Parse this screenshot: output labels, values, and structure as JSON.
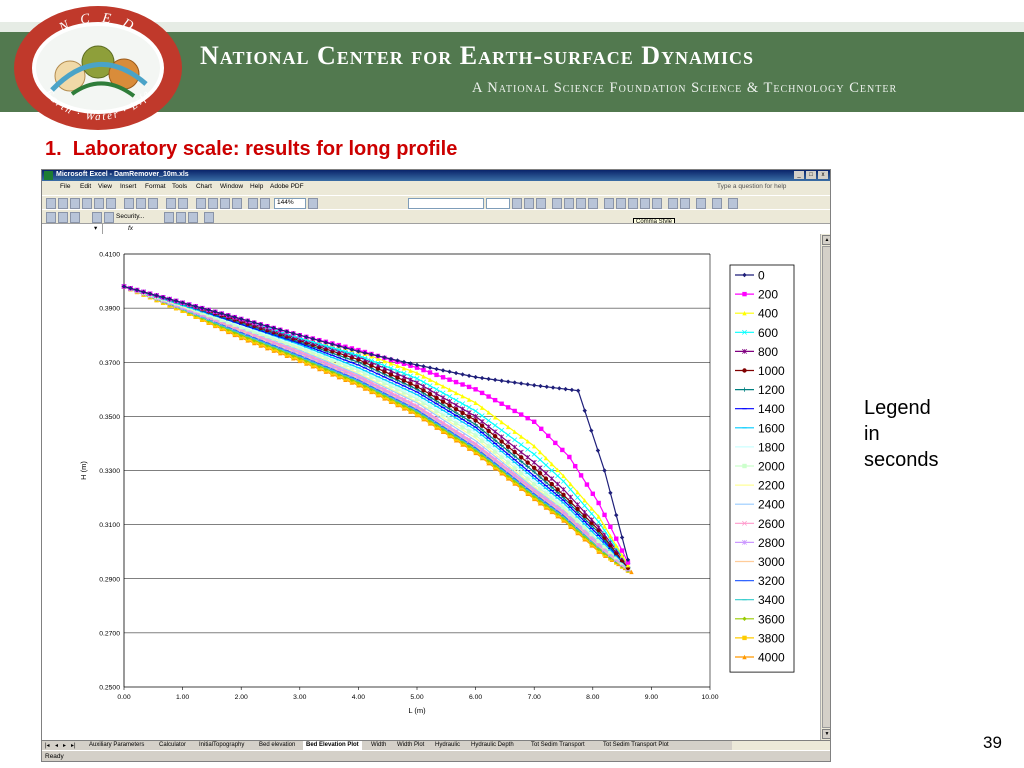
{
  "banner": {
    "title": "National Center for Earth-surface Dynamics",
    "subtitle": "A National Science Foundation Science & Technology Center",
    "logo": {
      "top": "N C E D",
      "bottom": "Earth · Water · Life"
    }
  },
  "slide": {
    "title": "1.  Laboratory scale: results for long profile",
    "legend_note": [
      "Legend",
      "in",
      "seconds"
    ],
    "page_number": "39"
  },
  "excel": {
    "window_title": "Microsoft Excel - DamRemover_10m.xls",
    "window_buttons": [
      "_",
      "□",
      "x"
    ],
    "menu": [
      "File",
      "Edit",
      "View",
      "Insert",
      "Format",
      "Tools",
      "Chart",
      "Window",
      "Help",
      "Adobe PDF"
    ],
    "help_placeholder": "Type a question for help",
    "zoom": "144%",
    "security_label": "Security...",
    "tooltip": "Comma Style",
    "fx_label": "fx",
    "sheet_tabs": [
      "Auxiliary Parameters",
      "Calculator",
      "InitialTopography",
      "Bed elevation",
      "Bed Elevation Plot",
      "Width",
      "Width Plot",
      "Hydraulic",
      "Hydraulic Depth",
      "Tot Sedim Transport",
      "Tot Sedim Transport Plot"
    ],
    "active_tab": "Bed Elevation Plot",
    "status": "Ready"
  },
  "chart_data": {
    "type": "line",
    "xlabel": "L (m)",
    "ylabel": "H (m)",
    "xlim": [
      0,
      10
    ],
    "ylim": [
      0.25,
      0.41
    ],
    "x_ticks": [
      "0.00",
      "1.00",
      "2.00",
      "3.00",
      "4.00",
      "5.00",
      "6.00",
      "7.00",
      "8.00",
      "9.00",
      "10.00"
    ],
    "y_ticks": [
      "0.2500",
      "0.2700",
      "0.2900",
      "0.3100",
      "0.3300",
      "0.3500",
      "0.3700",
      "0.3900",
      "0.4100"
    ],
    "grid": "horizontal",
    "legend_position": "right",
    "series": [
      {
        "name": "0",
        "color": "#1f1f7a",
        "marker": "diamond",
        "points": [
          [
            0,
            0.398
          ],
          [
            1,
            0.392
          ],
          [
            2,
            0.386
          ],
          [
            3,
            0.38
          ],
          [
            4,
            0.374
          ],
          [
            5,
            0.369
          ],
          [
            6,
            0.3645
          ],
          [
            7,
            0.3615
          ],
          [
            7.75,
            0.3595
          ],
          [
            8.2,
            0.33
          ],
          [
            8.6,
            0.297
          ]
        ]
      },
      {
        "name": "200",
        "color": "#ff00ff",
        "marker": "square",
        "points": [
          [
            0,
            0.398
          ],
          [
            1,
            0.392
          ],
          [
            2,
            0.386
          ],
          [
            3,
            0.38
          ],
          [
            4,
            0.3745
          ],
          [
            5,
            0.368
          ],
          [
            6,
            0.36
          ],
          [
            7,
            0.348
          ],
          [
            7.6,
            0.335
          ],
          [
            8.1,
            0.318
          ],
          [
            8.6,
            0.296
          ]
        ]
      },
      {
        "name": "400",
        "color": "#ffff00",
        "marker": "triangle",
        "points": [
          [
            0,
            0.398
          ],
          [
            1,
            0.392
          ],
          [
            2,
            0.386
          ],
          [
            3,
            0.38
          ],
          [
            4,
            0.374
          ],
          [
            5,
            0.366
          ],
          [
            6,
            0.355
          ],
          [
            7,
            0.339
          ],
          [
            7.5,
            0.328
          ],
          [
            8.1,
            0.313
          ],
          [
            8.6,
            0.295
          ]
        ]
      },
      {
        "name": "600",
        "color": "#00ffff",
        "marker": "x",
        "points": [
          [
            0,
            0.398
          ],
          [
            1,
            0.392
          ],
          [
            2,
            0.386
          ],
          [
            3,
            0.379
          ],
          [
            4,
            0.3725
          ],
          [
            5,
            0.364
          ],
          [
            6,
            0.352
          ],
          [
            7,
            0.336
          ],
          [
            7.5,
            0.326
          ],
          [
            8.1,
            0.311
          ],
          [
            8.6,
            0.295
          ]
        ]
      },
      {
        "name": "800",
        "color": "#800080",
        "marker": "star",
        "points": [
          [
            0,
            0.398
          ],
          [
            1,
            0.392
          ],
          [
            2,
            0.3855
          ],
          [
            3,
            0.3785
          ],
          [
            4,
            0.372
          ],
          [
            5,
            0.3625
          ],
          [
            6,
            0.35
          ],
          [
            7,
            0.333
          ],
          [
            7.5,
            0.323
          ],
          [
            8.1,
            0.309
          ],
          [
            8.6,
            0.295
          ]
        ]
      },
      {
        "name": "1000",
        "color": "#800000",
        "marker": "circle",
        "points": [
          [
            0,
            0.398
          ],
          [
            1,
            0.392
          ],
          [
            2,
            0.385
          ],
          [
            3,
            0.378
          ],
          [
            4,
            0.371
          ],
          [
            5,
            0.361
          ],
          [
            6,
            0.3485
          ],
          [
            7,
            0.331
          ],
          [
            7.5,
            0.321
          ],
          [
            8.1,
            0.308
          ],
          [
            8.6,
            0.294
          ]
        ]
      },
      {
        "name": "1200",
        "color": "#008080",
        "marker": "plus",
        "points": [
          [
            0,
            0.398
          ],
          [
            1,
            0.3915
          ],
          [
            2,
            0.3845
          ],
          [
            3,
            0.3775
          ],
          [
            4,
            0.37
          ],
          [
            5,
            0.36
          ],
          [
            6,
            0.347
          ],
          [
            7,
            0.3295
          ],
          [
            7.5,
            0.32
          ],
          [
            8.1,
            0.307
          ],
          [
            8.6,
            0.294
          ]
        ]
      },
      {
        "name": "1400",
        "color": "#0000ff",
        "marker": "dash",
        "points": [
          [
            0,
            0.398
          ],
          [
            1,
            0.3915
          ],
          [
            2,
            0.384
          ],
          [
            3,
            0.377
          ],
          [
            4,
            0.369
          ],
          [
            5,
            0.359
          ],
          [
            6,
            0.346
          ],
          [
            7,
            0.328
          ],
          [
            7.5,
            0.319
          ],
          [
            8.1,
            0.306
          ],
          [
            8.6,
            0.294
          ]
        ]
      },
      {
        "name": "1600",
        "color": "#00ccff",
        "marker": "dash",
        "points": [
          [
            0,
            0.398
          ],
          [
            1,
            0.391
          ],
          [
            2,
            0.384
          ],
          [
            3,
            0.3765
          ],
          [
            4,
            0.368
          ],
          [
            5,
            0.358
          ],
          [
            6,
            0.345
          ],
          [
            7,
            0.327
          ],
          [
            7.5,
            0.318
          ],
          [
            8.1,
            0.305
          ],
          [
            8.6,
            0.294
          ]
        ]
      },
      {
        "name": "1800",
        "color": "#ccffff",
        "marker": "none",
        "points": [
          [
            0,
            0.398
          ],
          [
            1,
            0.391
          ],
          [
            2,
            0.3835
          ],
          [
            3,
            0.376
          ],
          [
            4,
            0.3675
          ],
          [
            5,
            0.357
          ],
          [
            6,
            0.344
          ],
          [
            7,
            0.326
          ],
          [
            7.5,
            0.317
          ],
          [
            8.1,
            0.305
          ],
          [
            8.6,
            0.294
          ]
        ]
      },
      {
        "name": "2000",
        "color": "#ccffcc",
        "marker": "square",
        "points": [
          [
            0,
            0.398
          ],
          [
            1,
            0.391
          ],
          [
            2,
            0.383
          ],
          [
            3,
            0.3755
          ],
          [
            4,
            0.367
          ],
          [
            5,
            0.3565
          ],
          [
            6,
            0.343
          ],
          [
            7,
            0.325
          ],
          [
            7.5,
            0.3165
          ],
          [
            8.1,
            0.304
          ],
          [
            8.6,
            0.294
          ]
        ]
      },
      {
        "name": "2200",
        "color": "#ffff99",
        "marker": "none",
        "points": [
          [
            0,
            0.398
          ],
          [
            1,
            0.3905
          ],
          [
            2,
            0.383
          ],
          [
            3,
            0.375
          ],
          [
            4,
            0.366
          ],
          [
            5,
            0.3555
          ],
          [
            6,
            0.342
          ],
          [
            7,
            0.324
          ],
          [
            7.5,
            0.316
          ],
          [
            8.1,
            0.304
          ],
          [
            8.6,
            0.294
          ]
        ]
      },
      {
        "name": "2400",
        "color": "#99ccff",
        "marker": "none",
        "points": [
          [
            0,
            0.398
          ],
          [
            1,
            0.3905
          ],
          [
            2,
            0.3825
          ],
          [
            3,
            0.3745
          ],
          [
            4,
            0.3655
          ],
          [
            5,
            0.355
          ],
          [
            6,
            0.341
          ],
          [
            7,
            0.3235
          ],
          [
            7.5,
            0.3155
          ],
          [
            8.1,
            0.3035
          ],
          [
            8.6,
            0.2935
          ]
        ]
      },
      {
        "name": "2600",
        "color": "#ff99cc",
        "marker": "x",
        "points": [
          [
            0,
            0.398
          ],
          [
            1,
            0.3905
          ],
          [
            2,
            0.382
          ],
          [
            3,
            0.374
          ],
          [
            4,
            0.365
          ],
          [
            5,
            0.354
          ],
          [
            6,
            0.34
          ],
          [
            7,
            0.323
          ],
          [
            7.5,
            0.315
          ],
          [
            8.1,
            0.303
          ],
          [
            8.6,
            0.2935
          ]
        ]
      },
      {
        "name": "2800",
        "color": "#cc99ff",
        "marker": "star",
        "points": [
          [
            0,
            0.398
          ],
          [
            1,
            0.39
          ],
          [
            2,
            0.382
          ],
          [
            3,
            0.3735
          ],
          [
            4,
            0.3645
          ],
          [
            5,
            0.3535
          ],
          [
            6,
            0.3395
          ],
          [
            7,
            0.3225
          ],
          [
            7.5,
            0.3145
          ],
          [
            8.1,
            0.3025
          ],
          [
            8.6,
            0.2935
          ]
        ]
      },
      {
        "name": "3000",
        "color": "#ffcc99",
        "marker": "none",
        "points": [
          [
            0,
            0.398
          ],
          [
            1,
            0.39
          ],
          [
            2,
            0.3815
          ],
          [
            3,
            0.373
          ],
          [
            4,
            0.364
          ],
          [
            5,
            0.353
          ],
          [
            6,
            0.339
          ],
          [
            7,
            0.322
          ],
          [
            7.5,
            0.314
          ],
          [
            8.1,
            0.302
          ],
          [
            8.6,
            0.293
          ]
        ]
      },
      {
        "name": "3200",
        "color": "#3366ff",
        "marker": "dash",
        "points": [
          [
            0,
            0.398
          ],
          [
            1,
            0.39
          ],
          [
            2,
            0.381
          ],
          [
            3,
            0.3725
          ],
          [
            4,
            0.3635
          ],
          [
            5,
            0.3525
          ],
          [
            6,
            0.3385
          ],
          [
            7,
            0.3215
          ],
          [
            7.5,
            0.3135
          ],
          [
            8.1,
            0.302
          ],
          [
            8.6,
            0.293
          ]
        ]
      },
      {
        "name": "3400",
        "color": "#33cccc",
        "marker": "dash",
        "points": [
          [
            0,
            0.398
          ],
          [
            1,
            0.3895
          ],
          [
            2,
            0.3805
          ],
          [
            3,
            0.372
          ],
          [
            4,
            0.363
          ],
          [
            5,
            0.352
          ],
          [
            6,
            0.338
          ],
          [
            7,
            0.321
          ],
          [
            7.5,
            0.313
          ],
          [
            8.1,
            0.3015
          ],
          [
            8.6,
            0.293
          ]
        ]
      },
      {
        "name": "3600",
        "color": "#99cc00",
        "marker": "diamond",
        "points": [
          [
            0,
            0.398
          ],
          [
            1,
            0.3895
          ],
          [
            2,
            0.38
          ],
          [
            3,
            0.3715
          ],
          [
            4,
            0.3625
          ],
          [
            5,
            0.3515
          ],
          [
            6,
            0.3375
          ],
          [
            7,
            0.3205
          ],
          [
            7.5,
            0.3125
          ],
          [
            8.1,
            0.301
          ],
          [
            8.6,
            0.293
          ]
        ]
      },
      {
        "name": "3800",
        "color": "#ffcc00",
        "marker": "square",
        "points": [
          [
            0,
            0.398
          ],
          [
            1,
            0.389
          ],
          [
            2,
            0.3795
          ],
          [
            3,
            0.371
          ],
          [
            4,
            0.362
          ],
          [
            5,
            0.351
          ],
          [
            6,
            0.337
          ],
          [
            7,
            0.32
          ],
          [
            7.5,
            0.312
          ],
          [
            8.1,
            0.3005
          ],
          [
            8.6,
            0.293
          ]
        ]
      },
      {
        "name": "4000",
        "color": "#ff9900",
        "marker": "triangle",
        "points": [
          [
            0,
            0.398
          ],
          [
            1,
            0.389
          ],
          [
            2,
            0.379
          ],
          [
            3,
            0.3705
          ],
          [
            4,
            0.3615
          ],
          [
            5,
            0.3505
          ],
          [
            6,
            0.3365
          ],
          [
            7,
            0.3195
          ],
          [
            7.5,
            0.3115
          ],
          [
            8.1,
            0.3
          ],
          [
            8.66,
            0.2925
          ]
        ]
      }
    ]
  }
}
